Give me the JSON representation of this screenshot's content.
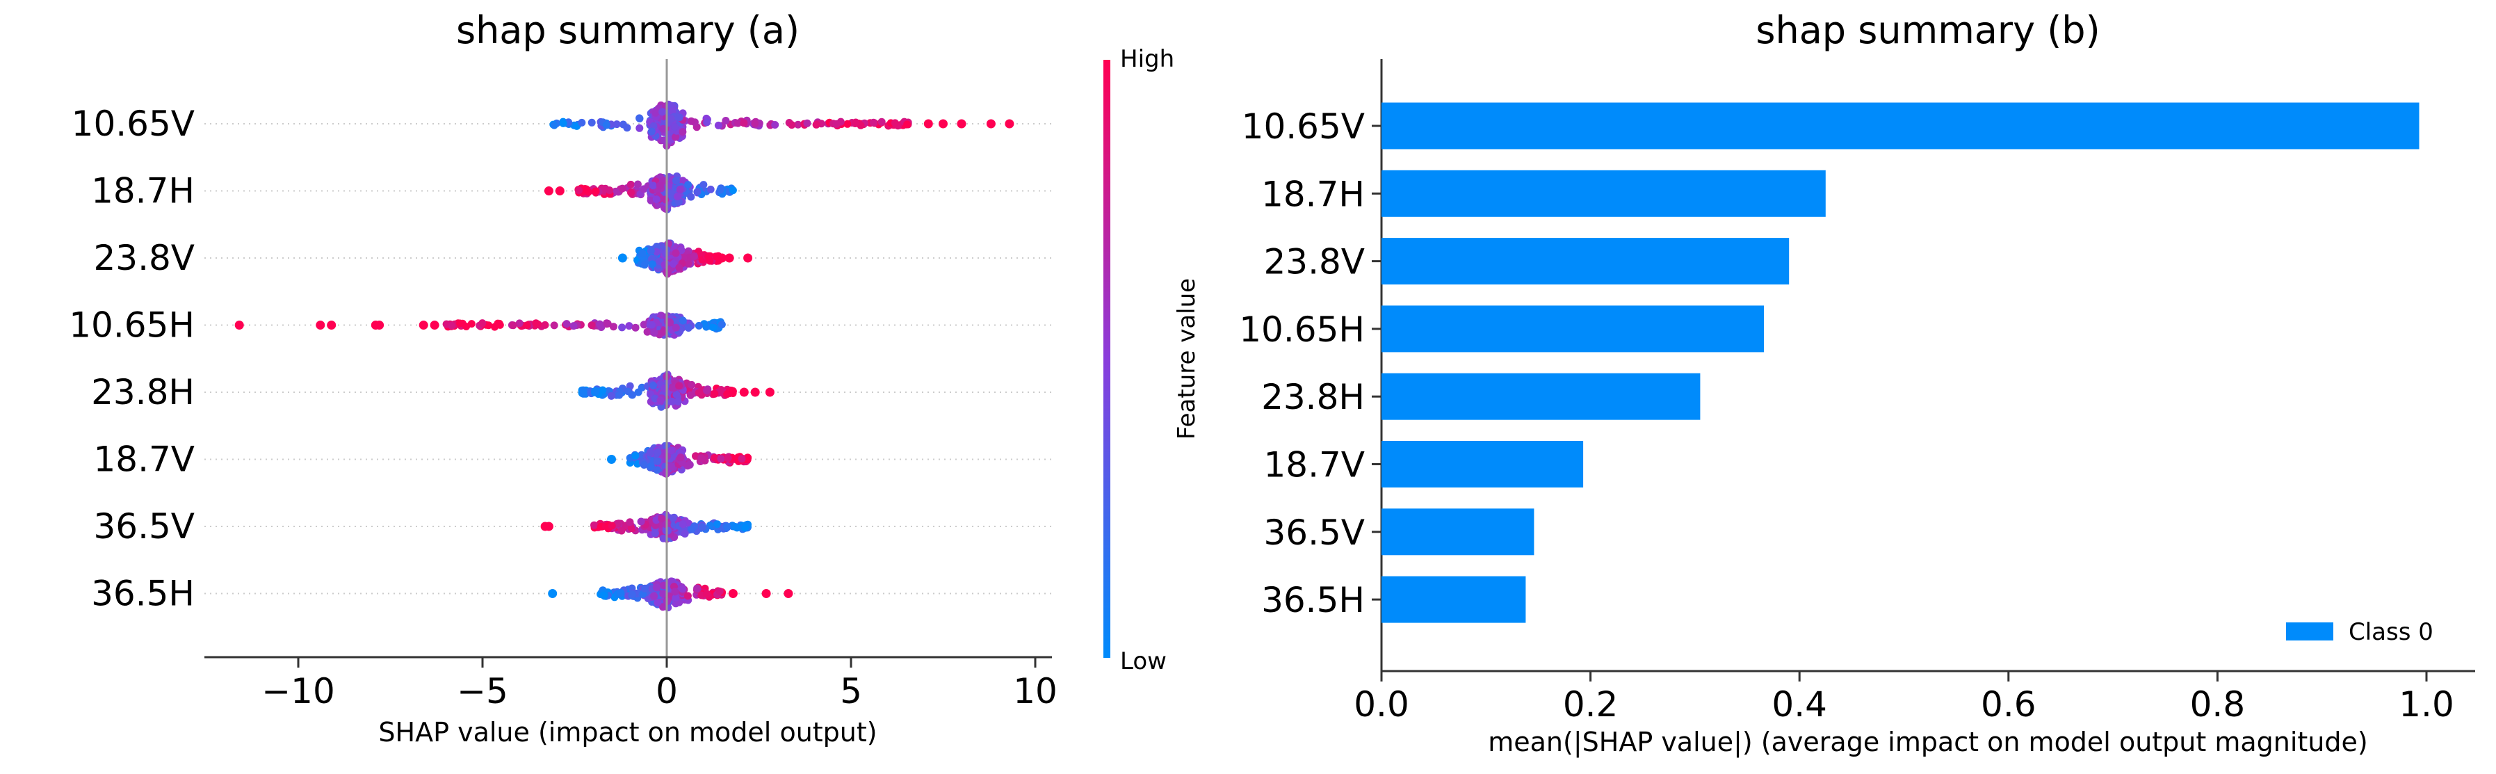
{
  "chart_data": [
    {
      "type": "scatter",
      "variant": "shap-beeswarm",
      "title": "shap summary (a)",
      "xlabel": "SHAP value (impact on model output)",
      "ylabel": "",
      "xlim": [
        -12.5,
        10.3
      ],
      "xticks": [
        -10,
        -5,
        0,
        5,
        10
      ],
      "xtick_labels": [
        "−10",
        "−5",
        "0",
        "5",
        "10"
      ],
      "features": [
        {
          "name": "10.65V",
          "min": -3.1,
          "max": 9.3,
          "dense_min": -3.1,
          "dense_max": 6.6,
          "outliers": [
            7.1,
            7.5,
            8.0,
            8.8,
            9.3
          ],
          "spread": 1.0
        },
        {
          "name": "18.7H",
          "min": -3.2,
          "max": 1.8,
          "dense_min": -2.4,
          "dense_max": 1.8,
          "outliers": [
            -3.2,
            -2.9
          ],
          "spread": 0.9
        },
        {
          "name": "23.8V",
          "min": -1.2,
          "max": 2.2,
          "dense_min": -0.8,
          "dense_max": 1.4,
          "outliers": [
            -1.2,
            1.5,
            1.7,
            2.2
          ],
          "spread": 0.75
        },
        {
          "name": "10.65H",
          "min": -11.6,
          "max": 1.5,
          "dense_min": -6.0,
          "dense_max": 1.5,
          "outliers": [
            -11.6,
            -9.4,
            -9.1,
            -7.9,
            -7.8,
            -6.6,
            -6.3
          ],
          "spread": 0.55
        },
        {
          "name": "23.8H",
          "min": -2.3,
          "max": 2.8,
          "dense_min": -2.3,
          "dense_max": 1.8,
          "outliers": [
            2.1,
            2.4,
            2.8
          ],
          "spread": 0.8
        },
        {
          "name": "18.7V",
          "min": -1.5,
          "max": 2.2,
          "dense_min": -1.0,
          "dense_max": 2.2,
          "outliers": [
            -1.5
          ],
          "spread": 0.7
        },
        {
          "name": "36.5V",
          "min": -3.3,
          "max": 2.2,
          "dense_min": -2.0,
          "dense_max": 2.2,
          "outliers": [
            -3.3,
            -3.2
          ],
          "spread": 0.6
        },
        {
          "name": "36.5H",
          "min": -3.1,
          "max": 3.3,
          "dense_min": -1.8,
          "dense_max": 1.5,
          "outliers": [
            -3.1,
            1.8,
            2.7,
            3.3
          ],
          "spread": 0.65
        }
      ],
      "colorbar": {
        "label": "Feature value",
        "high": "High",
        "low": "Low",
        "color_high": "#ff0052",
        "color_low": "#008bfb"
      }
    },
    {
      "type": "bar",
      "orientation": "horizontal",
      "title": "shap summary (b)",
      "xlabel": "mean(|SHAP value|) (average impact on model output magnitude)",
      "ylabel": "",
      "categories": [
        "10.65V",
        "18.7H",
        "23.8V",
        "10.65H",
        "23.8H",
        "18.7V",
        "36.5V",
        "36.5H"
      ],
      "series": [
        {
          "name": "Class 0",
          "values": [
            0.993,
            0.425,
            0.39,
            0.366,
            0.305,
            0.193,
            0.146,
            0.138
          ],
          "color": "#008bfb"
        }
      ],
      "xlim": [
        0,
        1.03
      ],
      "xticks": [
        0.0,
        0.2,
        0.4,
        0.6,
        0.8,
        1.0
      ],
      "xtick_labels": [
        "0.0",
        "0.2",
        "0.4",
        "0.6",
        "0.8",
        "1.0"
      ],
      "legend": {
        "position": "bottom-right",
        "label": "Class 0"
      }
    }
  ]
}
